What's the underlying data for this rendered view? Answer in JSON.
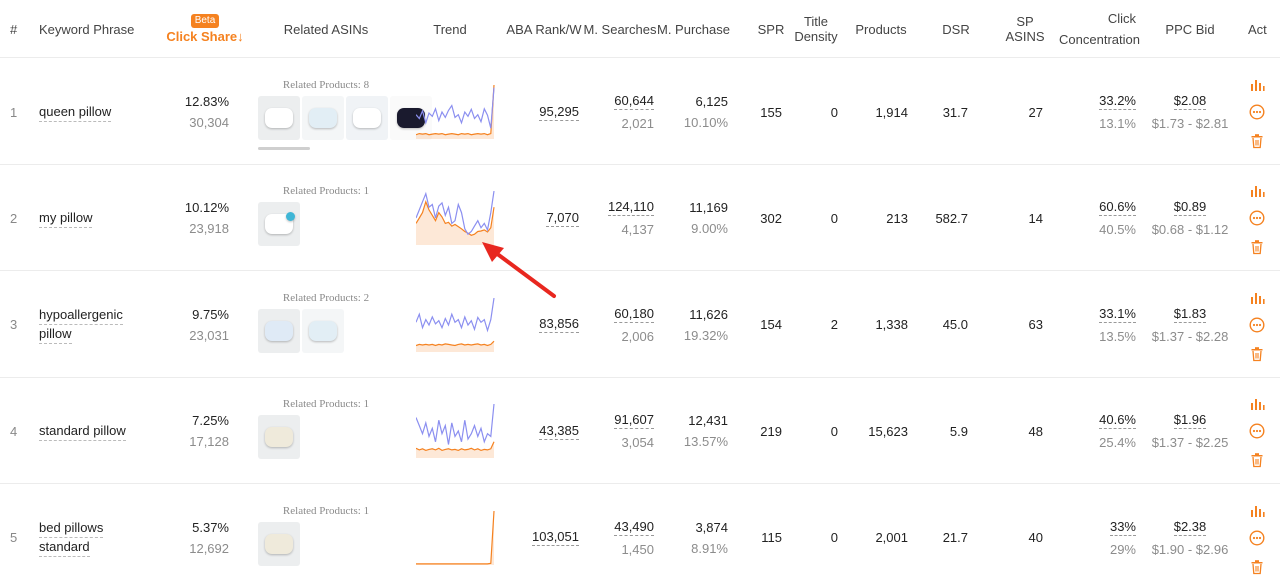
{
  "header": {
    "index": "#",
    "keyword": "Keyword Phrase",
    "beta": "Beta",
    "click_share": "Click Share↓",
    "related_asins": "Related ASINs",
    "trend": "Trend",
    "aba_rank": "ABA Rank/W",
    "m_searches": "M. Searches",
    "m_purchase": "M. Purchase",
    "spr": "SPR",
    "title_density_1": "Title",
    "title_density_2": "Density",
    "products": "Products",
    "dsr": "DSR",
    "sp_asins_1": "SP",
    "sp_asins_2": "ASINS",
    "click_conc_1": "Click",
    "click_conc_2": "Concentration",
    "ppc_bid": "PPC Bid",
    "actions": "Act"
  },
  "colors": {
    "accent": "#f58220",
    "trend_line": "#8b8ff0",
    "trend_area": "#f58220",
    "arrow": "#e8271f"
  },
  "rows": [
    {
      "index": "1",
      "keyword_lines": [
        "queen pillow"
      ],
      "click_share": "12.83%",
      "click_share_count": "30,304",
      "related": "Related Products: 8",
      "thumbs": 4,
      "aba_rank": "95,295",
      "m_searches": "60,644",
      "m_searches_sub": "2,021",
      "m_purchase": "6,125",
      "m_purchase_sub": "10.10%",
      "spr": "155",
      "title_density": "0",
      "products": "1,914",
      "dsr": "31.7",
      "sp_asins": "27",
      "click_conc": "33.2%",
      "click_conc_sub": "13.1%",
      "ppc_bid": "$2.08",
      "ppc_range": "$1.73 - $2.81",
      "trend_blue": [
        0.55,
        0.62,
        0.48,
        0.7,
        0.52,
        0.58,
        0.44,
        0.66,
        0.5,
        0.6,
        0.47,
        0.38,
        0.6,
        0.55,
        0.7,
        0.5,
        0.58,
        0.45,
        0.62,
        0.55,
        0.68,
        0.44,
        0.56,
        0.8,
        0.05
      ],
      "trend_orange": [
        0.92,
        0.9,
        0.91,
        0.9,
        0.92,
        0.91,
        0.9,
        0.91,
        0.9,
        0.92,
        0.91,
        0.9,
        0.91,
        0.92,
        0.9,
        0.91,
        0.9,
        0.92,
        0.91,
        0.9,
        0.91,
        0.9,
        0.92,
        0.9,
        0.0
      ]
    },
    {
      "index": "2",
      "keyword_lines": [
        "my pillow"
      ],
      "click_share": "10.12%",
      "click_share_count": "23,918",
      "related": "Related Products: 1",
      "thumbs": 1,
      "aba_rank": "7,070",
      "m_searches": "124,110",
      "m_searches_sub": "4,137",
      "m_purchase": "11,169",
      "m_purchase_sub": "9.00%",
      "spr": "302",
      "title_density": "0",
      "products": "213",
      "dsr": "582.7",
      "sp_asins": "14",
      "click_conc": "60.6%",
      "click_conc_sub": "40.5%",
      "ppc_bid": "$0.89",
      "ppc_range": "$0.68 - $1.12",
      "trend_blue": [
        0.5,
        0.35,
        0.2,
        0.05,
        0.3,
        0.25,
        0.5,
        0.28,
        0.22,
        0.45,
        0.3,
        0.6,
        0.55,
        0.25,
        0.4,
        0.7,
        0.8,
        0.75,
        0.65,
        0.55,
        0.68,
        0.6,
        0.72,
        0.4,
        0.0
      ],
      "trend_orange": [
        0.6,
        0.5,
        0.4,
        0.2,
        0.35,
        0.45,
        0.55,
        0.4,
        0.48,
        0.6,
        0.58,
        0.65,
        0.62,
        0.66,
        0.7,
        0.75,
        0.78,
        0.82,
        0.8,
        0.75,
        0.74,
        0.72,
        0.76,
        0.68,
        0.3
      ]
    },
    {
      "index": "3",
      "keyword_lines": [
        "hypoallergenic",
        "pillow"
      ],
      "click_share": "9.75%",
      "click_share_count": "23,031",
      "related": "Related Products: 2",
      "thumbs": 2,
      "aba_rank": "83,856",
      "m_searches": "60,180",
      "m_searches_sub": "2,006",
      "m_purchase": "11,626",
      "m_purchase_sub": "19.32%",
      "spr": "154",
      "title_density": "2",
      "products": "1,338",
      "dsr": "45.0",
      "sp_asins": "63",
      "click_conc": "33.1%",
      "click_conc_sub": "13.5%",
      "ppc_bid": "$1.83",
      "ppc_range": "$1.37 - $2.28",
      "trend_blue": [
        0.45,
        0.3,
        0.55,
        0.4,
        0.5,
        0.35,
        0.48,
        0.42,
        0.55,
        0.38,
        0.5,
        0.3,
        0.45,
        0.4,
        0.55,
        0.35,
        0.5,
        0.42,
        0.58,
        0.36,
        0.45,
        0.4,
        0.6,
        0.4,
        0.0
      ],
      "trend_orange": [
        0.88,
        0.86,
        0.87,
        0.86,
        0.87,
        0.86,
        0.88,
        0.86,
        0.87,
        0.85,
        0.86,
        0.87,
        0.88,
        0.86,
        0.85,
        0.87,
        0.86,
        0.87,
        0.86,
        0.85,
        0.87,
        0.86,
        0.88,
        0.86,
        0.8
      ]
    },
    {
      "index": "4",
      "keyword_lines": [
        "standard pillow"
      ],
      "click_share": "7.25%",
      "click_share_count": "17,128",
      "related": "Related Products: 1",
      "thumbs": 1,
      "aba_rank": "43,385",
      "m_searches": "91,607",
      "m_searches_sub": "3,054",
      "m_purchase": "12,431",
      "m_purchase_sub": "13.57%",
      "spr": "219",
      "title_density": "0",
      "products": "15,623",
      "dsr": "5.9",
      "sp_asins": "48",
      "click_conc": "40.6%",
      "click_conc_sub": "25.4%",
      "ppc_bid": "$1.96",
      "ppc_range": "$1.37 - $2.25",
      "trend_blue": [
        0.25,
        0.4,
        0.55,
        0.35,
        0.6,
        0.45,
        0.7,
        0.3,
        0.55,
        0.4,
        0.75,
        0.35,
        0.6,
        0.5,
        0.7,
        0.3,
        0.65,
        0.55,
        0.4,
        0.6,
        0.45,
        0.7,
        0.55,
        0.6,
        0.0
      ],
      "trend_orange": [
        0.82,
        0.85,
        0.83,
        0.86,
        0.84,
        0.83,
        0.85,
        0.82,
        0.86,
        0.84,
        0.83,
        0.85,
        0.84,
        0.86,
        0.83,
        0.85,
        0.84,
        0.82,
        0.85,
        0.83,
        0.86,
        0.84,
        0.85,
        0.83,
        0.7
      ]
    },
    {
      "index": "5",
      "keyword_lines": [
        "bed pillows",
        "standard"
      ],
      "click_share": "5.37%",
      "click_share_count": "12,692",
      "related": "Related Products: 1",
      "thumbs": 1,
      "aba_rank": "103,051",
      "m_searches": "43,490",
      "m_searches_sub": "1,450",
      "m_purchase": "3,874",
      "m_purchase_sub": "8.91%",
      "spr": "115",
      "title_density": "0",
      "products": "2,001",
      "dsr": "21.7",
      "sp_asins": "40",
      "click_conc": "33%",
      "click_conc_sub": "29%",
      "ppc_bid": "$2.38",
      "ppc_range": "$1.90 - $2.96",
      "trend_blue": [],
      "trend_orange": [
        0.98,
        0.98,
        0.98,
        0.98,
        0.98,
        0.98,
        0.98,
        0.98,
        0.98,
        0.98,
        0.98,
        0.98,
        0.98,
        0.98,
        0.98,
        0.98,
        0.98,
        0.98,
        0.98,
        0.98,
        0.98,
        0.98,
        0.98,
        0.97,
        0.0
      ]
    }
  ]
}
